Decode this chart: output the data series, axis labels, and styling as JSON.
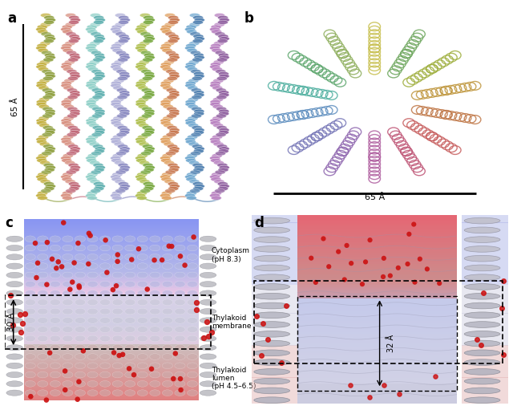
{
  "fig_width": 6.4,
  "fig_height": 5.11,
  "bg_color": "#f5f5f5",
  "panel_label_fontsize": 12,
  "panel_label_weight": "bold",
  "helix_colors_side": [
    "#8b9e50",
    "#c8b060",
    "#c06878",
    "#80a870",
    "#70c0b8",
    "#9898c8",
    "#7878b0",
    "#a8c060"
  ],
  "helix_colors_ring": [
    "#c8c050",
    "#90b060",
    "#60a870",
    "#50b0a0",
    "#6090c0",
    "#7878b8",
    "#9068b0",
    "#b060a0",
    "#c05878",
    "#c86060",
    "#c07848",
    "#c09840",
    "#a0b040",
    "#70a860",
    "#50a888",
    "#5080b8",
    "#7068b8",
    "#9860a8",
    "#b85890",
    "#c85870"
  ],
  "dot_color": "#cc1111",
  "cytoplasm_label": "Cytoplasm\n(pH 8.3)",
  "membrane_label": "Thylakoid\nmembrane",
  "lumen_label": "Thylakoid\nlumen\n(pH 4.5–6.5)",
  "dim_30A": "30 Å",
  "dim_65A": "65 Å",
  "dim_32A": "32 Å"
}
